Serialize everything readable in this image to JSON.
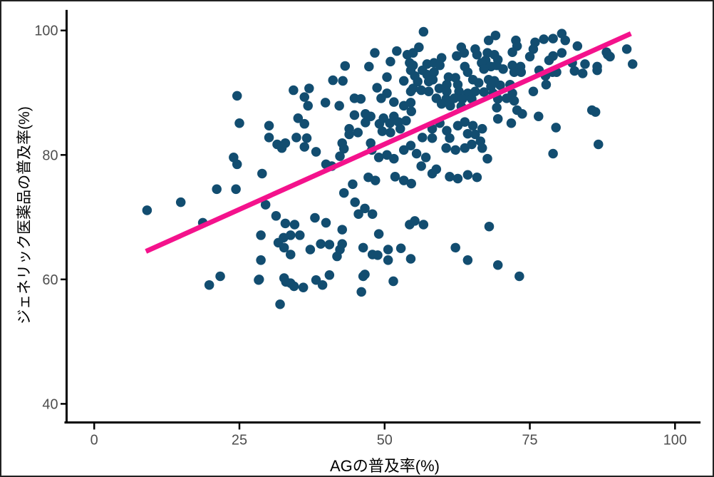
{
  "figure": {
    "background": "#ffffff",
    "border_color": "#222222"
  },
  "chart_data": {
    "type": "scatter",
    "title": "",
    "xlabel": "AGの普及率(%)",
    "ylabel": "ジェネリック医薬品の普及率(%)",
    "x_ticks": [
      0,
      25,
      50,
      75,
      100
    ],
    "y_ticks": [
      40,
      60,
      80,
      100
    ],
    "xlim": [
      -5,
      104
    ],
    "ylim": [
      37,
      103
    ],
    "grid": false,
    "legend": "none",
    "point_color": "#124D70",
    "axis_color": "#000000",
    "tick_label_color": "#4e4e4e",
    "trend_line": {
      "color": "#F4128C",
      "x1": 8.9,
      "y1": 64.5,
      "x2": 92.4,
      "y2": 99.5
    },
    "points": [
      [
        9.1,
        71.1
      ],
      [
        14.9,
        72.4
      ],
      [
        18.7,
        69.1
      ],
      [
        21.1,
        74.5
      ],
      [
        24.4,
        74.5
      ],
      [
        24.6,
        89.5
      ],
      [
        25.0,
        85.1
      ],
      [
        30.1,
        84.7
      ],
      [
        30.1,
        82.8
      ],
      [
        24.0,
        79.6
      ],
      [
        24.6,
        78.5
      ],
      [
        28.9,
        77.0
      ],
      [
        29.5,
        72.0
      ],
      [
        19.8,
        59.1
      ],
      [
        21.7,
        60.5
      ],
      [
        48.3,
        96.4
      ],
      [
        52.1,
        96.7
      ],
      [
        53.9,
        96.1
      ],
      [
        51.0,
        95.0
      ],
      [
        54.3,
        94.8
      ],
      [
        43.2,
        94.3
      ],
      [
        47.3,
        94.2
      ],
      [
        54.5,
        93.6
      ],
      [
        41.1,
        92.0
      ],
      [
        42.8,
        91.9
      ],
      [
        50.4,
        92.5
      ],
      [
        53.3,
        91.9
      ],
      [
        34.3,
        90.4
      ],
      [
        37.0,
        90.7
      ],
      [
        48.7,
        90.8
      ],
      [
        50.4,
        89.9
      ],
      [
        54.5,
        90.2
      ],
      [
        36.2,
        89.3
      ],
      [
        36.8,
        87.9
      ],
      [
        39.8,
        88.4
      ],
      [
        42.2,
        87.9
      ],
      [
        44.8,
        89.1
      ],
      [
        45.9,
        89.0
      ],
      [
        49.4,
        89.1
      ],
      [
        51.6,
        88.5
      ],
      [
        53.3,
        87.9
      ],
      [
        54.5,
        88.4
      ],
      [
        46.7,
        86.6
      ],
      [
        54.6,
        87.0
      ],
      [
        56.7,
        99.8
      ],
      [
        67.9,
        98.4
      ],
      [
        69.1,
        99.2
      ],
      [
        55.9,
        97.3
      ],
      [
        54.9,
        96.4
      ],
      [
        63.2,
        97.3
      ],
      [
        63.7,
        96.4
      ],
      [
        72.6,
        98.4
      ],
      [
        72.8,
        97.5
      ],
      [
        75.9,
        98.1
      ],
      [
        77.4,
        98.6
      ],
      [
        79.0,
        98.7
      ],
      [
        75.6,
        97.0
      ],
      [
        72.0,
        96.5
      ],
      [
        75.0,
        95.8
      ],
      [
        79.0,
        95.9
      ],
      [
        59.8,
        95.6
      ],
      [
        62.4,
        95.9
      ],
      [
        65.6,
        97.0
      ],
      [
        65.9,
        96.1
      ],
      [
        67.7,
        96.4
      ],
      [
        68.9,
        96.1
      ],
      [
        67.4,
        95.2
      ],
      [
        69.5,
        95.3
      ],
      [
        78.3,
        95.2
      ],
      [
        54.9,
        94.4
      ],
      [
        57.3,
        94.6
      ],
      [
        58.5,
        94.8
      ],
      [
        59.5,
        94.4
      ],
      [
        56.5,
        93.6
      ],
      [
        55.2,
        92.7
      ],
      [
        57.3,
        92.9
      ],
      [
        58.5,
        93.3
      ],
      [
        63.8,
        94.2
      ],
      [
        64.3,
        93.3
      ],
      [
        66.7,
        94.8
      ],
      [
        67.1,
        93.8
      ],
      [
        68.3,
        94.2
      ],
      [
        69.3,
        94.4
      ],
      [
        70.4,
        93.8
      ],
      [
        72.0,
        94.4
      ],
      [
        73.4,
        94.2
      ],
      [
        72.3,
        93.3
      ],
      [
        73.5,
        93.3
      ],
      [
        76.6,
        93.6
      ],
      [
        77.7,
        92.7
      ],
      [
        78.9,
        93.3
      ],
      [
        55.7,
        91.8
      ],
      [
        57.6,
        91.8
      ],
      [
        58.3,
        92.1
      ],
      [
        61.0,
        92.5
      ],
      [
        62.2,
        92.4
      ],
      [
        60.7,
        91.3
      ],
      [
        62.6,
        91.3
      ],
      [
        65.2,
        92.1
      ],
      [
        66.2,
        91.6
      ],
      [
        67.9,
        92.1
      ],
      [
        68.9,
        91.9
      ],
      [
        68.3,
        91.0
      ],
      [
        69.9,
        91.2
      ],
      [
        71.6,
        91.3
      ],
      [
        77.8,
        91.3
      ],
      [
        54.9,
        90.7
      ],
      [
        56.3,
        90.4
      ],
      [
        57.6,
        90.2
      ],
      [
        59.4,
        90.7
      ],
      [
        60.7,
        90.2
      ],
      [
        62.8,
        90.2
      ],
      [
        64.3,
        89.9
      ],
      [
        65.6,
        90.2
      ],
      [
        67.1,
        90.1
      ],
      [
        68.7,
        89.9
      ],
      [
        72.0,
        89.9
      ],
      [
        75.6,
        90.2
      ],
      [
        58.9,
        89.1
      ],
      [
        60.6,
        89.0
      ],
      [
        62.0,
        89.1
      ],
      [
        63.4,
        89.0
      ],
      [
        65.0,
        89.0
      ],
      [
        69.5,
        89.0
      ],
      [
        71.0,
        89.1
      ],
      [
        72.3,
        88.7
      ],
      [
        59.8,
        88.2
      ],
      [
        61.3,
        87.9
      ],
      [
        63.2,
        87.8
      ],
      [
        69.3,
        87.6
      ],
      [
        72.8,
        87.2
      ],
      [
        80.5,
        99.5
      ],
      [
        81.1,
        98.4
      ],
      [
        83.2,
        97.5
      ],
      [
        88.2,
        96.5
      ],
      [
        91.7,
        97.0
      ],
      [
        80.5,
        96.4
      ],
      [
        82.3,
        94.8
      ],
      [
        84.5,
        94.6
      ],
      [
        86.6,
        94.2
      ],
      [
        88.4,
        96.1
      ],
      [
        92.7,
        94.6
      ],
      [
        82.7,
        93.5
      ],
      [
        84.1,
        93.1
      ],
      [
        79.6,
        93.3
      ],
      [
        85.7,
        87.2
      ],
      [
        88.8,
        95.8
      ],
      [
        86.6,
        93.6
      ],
      [
        86.3,
        86.9
      ],
      [
        69.5,
        85.8
      ],
      [
        71.8,
        85.1
      ],
      [
        73.7,
        86.6
      ],
      [
        76.5,
        86.2
      ],
      [
        79.5,
        84.4
      ],
      [
        86.8,
        81.7
      ],
      [
        79.0,
        80.2
      ],
      [
        67.7,
        79.4
      ],
      [
        31.5,
        81.7
      ],
      [
        32.9,
        81.9
      ],
      [
        32.3,
        81.1
      ],
      [
        35.1,
        85.9
      ],
      [
        36.2,
        85.0
      ],
      [
        34.8,
        82.8
      ],
      [
        36.6,
        82.7
      ],
      [
        36.2,
        81.3
      ],
      [
        38.2,
        80.5
      ],
      [
        42.3,
        79.8
      ],
      [
        39.9,
        78.5
      ],
      [
        40.9,
        78.2
      ],
      [
        43.9,
        84.2
      ],
      [
        43.9,
        83.3
      ],
      [
        45.4,
        83.6
      ],
      [
        46.7,
        85.2
      ],
      [
        47.6,
        86.2
      ],
      [
        44.8,
        86.4
      ],
      [
        42.7,
        81.9
      ],
      [
        43.0,
        81.0
      ],
      [
        47.6,
        81.9
      ],
      [
        49.1,
        85.0
      ],
      [
        49.8,
        85.9
      ],
      [
        50.9,
        85.1
      ],
      [
        51.6,
        86.2
      ],
      [
        52.4,
        85.3
      ],
      [
        53.7,
        85.5
      ],
      [
        49.6,
        83.8
      ],
      [
        51.0,
        83.6
      ],
      [
        52.7,
        84.2
      ],
      [
        47.8,
        80.8
      ],
      [
        49.0,
        79.6
      ],
      [
        50.4,
        80.0
      ],
      [
        51.6,
        79.4
      ],
      [
        53.3,
        80.8
      ],
      [
        54.5,
        81.5
      ],
      [
        55.5,
        80.2
      ],
      [
        57.1,
        79.6
      ],
      [
        58.2,
        84.2
      ],
      [
        56.5,
        82.8
      ],
      [
        58.2,
        82.7
      ],
      [
        59.5,
        85.1
      ],
      [
        60.7,
        83.9
      ],
      [
        61.2,
        82.7
      ],
      [
        62.6,
        84.7
      ],
      [
        63.8,
        85.3
      ],
      [
        65.2,
        84.7
      ],
      [
        64.3,
        83.4
      ],
      [
        65.6,
        83.3
      ],
      [
        66.8,
        84.2
      ],
      [
        60.6,
        81.1
      ],
      [
        62.2,
        80.8
      ],
      [
        63.8,
        81.1
      ],
      [
        65.0,
        81.7
      ],
      [
        66.5,
        82.2
      ],
      [
        66.8,
        81.1
      ],
      [
        56.3,
        78.2
      ],
      [
        58.2,
        77.0
      ],
      [
        58.9,
        77.7
      ],
      [
        61.2,
        76.5
      ],
      [
        62.6,
        76.2
      ],
      [
        64.3,
        76.8
      ],
      [
        65.9,
        76.4
      ],
      [
        53.3,
        75.9
      ],
      [
        54.6,
        75.4
      ],
      [
        51.8,
        76.5
      ],
      [
        47.2,
        76.4
      ],
      [
        48.4,
        75.9
      ],
      [
        44.5,
        75.3
      ],
      [
        43.0,
        73.9
      ],
      [
        44.9,
        72.4
      ],
      [
        46.6,
        71.4
      ],
      [
        47.9,
        70.5
      ],
      [
        31.3,
        70.2
      ],
      [
        32.9,
        69.0
      ],
      [
        34.5,
        68.8
      ],
      [
        38.0,
        69.9
      ],
      [
        39.9,
        69.1
      ],
      [
        28.7,
        67.1
      ],
      [
        32.6,
        66.7
      ],
      [
        33.8,
        67.1
      ],
      [
        35.4,
        67.1
      ],
      [
        31.7,
        65.9
      ],
      [
        32.7,
        65.1
      ],
      [
        33.8,
        64.0
      ],
      [
        37.2,
        64.8
      ],
      [
        39.0,
        65.7
      ],
      [
        40.5,
        65.6
      ],
      [
        42.3,
        64.8
      ],
      [
        41.8,
        63.7
      ],
      [
        28.7,
        63.1
      ],
      [
        28.4,
        60.0
      ],
      [
        32.7,
        60.2
      ],
      [
        33.0,
        59.6
      ],
      [
        33.8,
        59.4
      ],
      [
        34.4,
        58.9
      ],
      [
        36.0,
        58.7
      ],
      [
        38.2,
        59.9
      ],
      [
        39.3,
        59.1
      ],
      [
        40.5,
        60.7
      ],
      [
        32.0,
        56.0
      ],
      [
        28.3,
        59.9
      ],
      [
        45.5,
        70.5
      ],
      [
        42.7,
        68.0
      ],
      [
        49.0,
        67.3
      ],
      [
        54.3,
        68.8
      ],
      [
        55.2,
        69.4
      ],
      [
        56.7,
        68.8
      ],
      [
        42.7,
        65.7
      ],
      [
        46.3,
        65.1
      ],
      [
        47.9,
        64.0
      ],
      [
        48.8,
        63.9
      ],
      [
        50.6,
        64.8
      ],
      [
        50.6,
        63.1
      ],
      [
        52.8,
        65.0
      ],
      [
        54.5,
        63.3
      ],
      [
        62.2,
        65.1
      ],
      [
        64.3,
        63.1
      ],
      [
        68.0,
        68.5
      ],
      [
        69.5,
        62.3
      ],
      [
        73.2,
        60.5
      ],
      [
        46.6,
        60.8
      ],
      [
        51.5,
        59.7
      ],
      [
        46.0,
        58.0
      ],
      [
        46.3,
        60.5
      ]
    ]
  }
}
